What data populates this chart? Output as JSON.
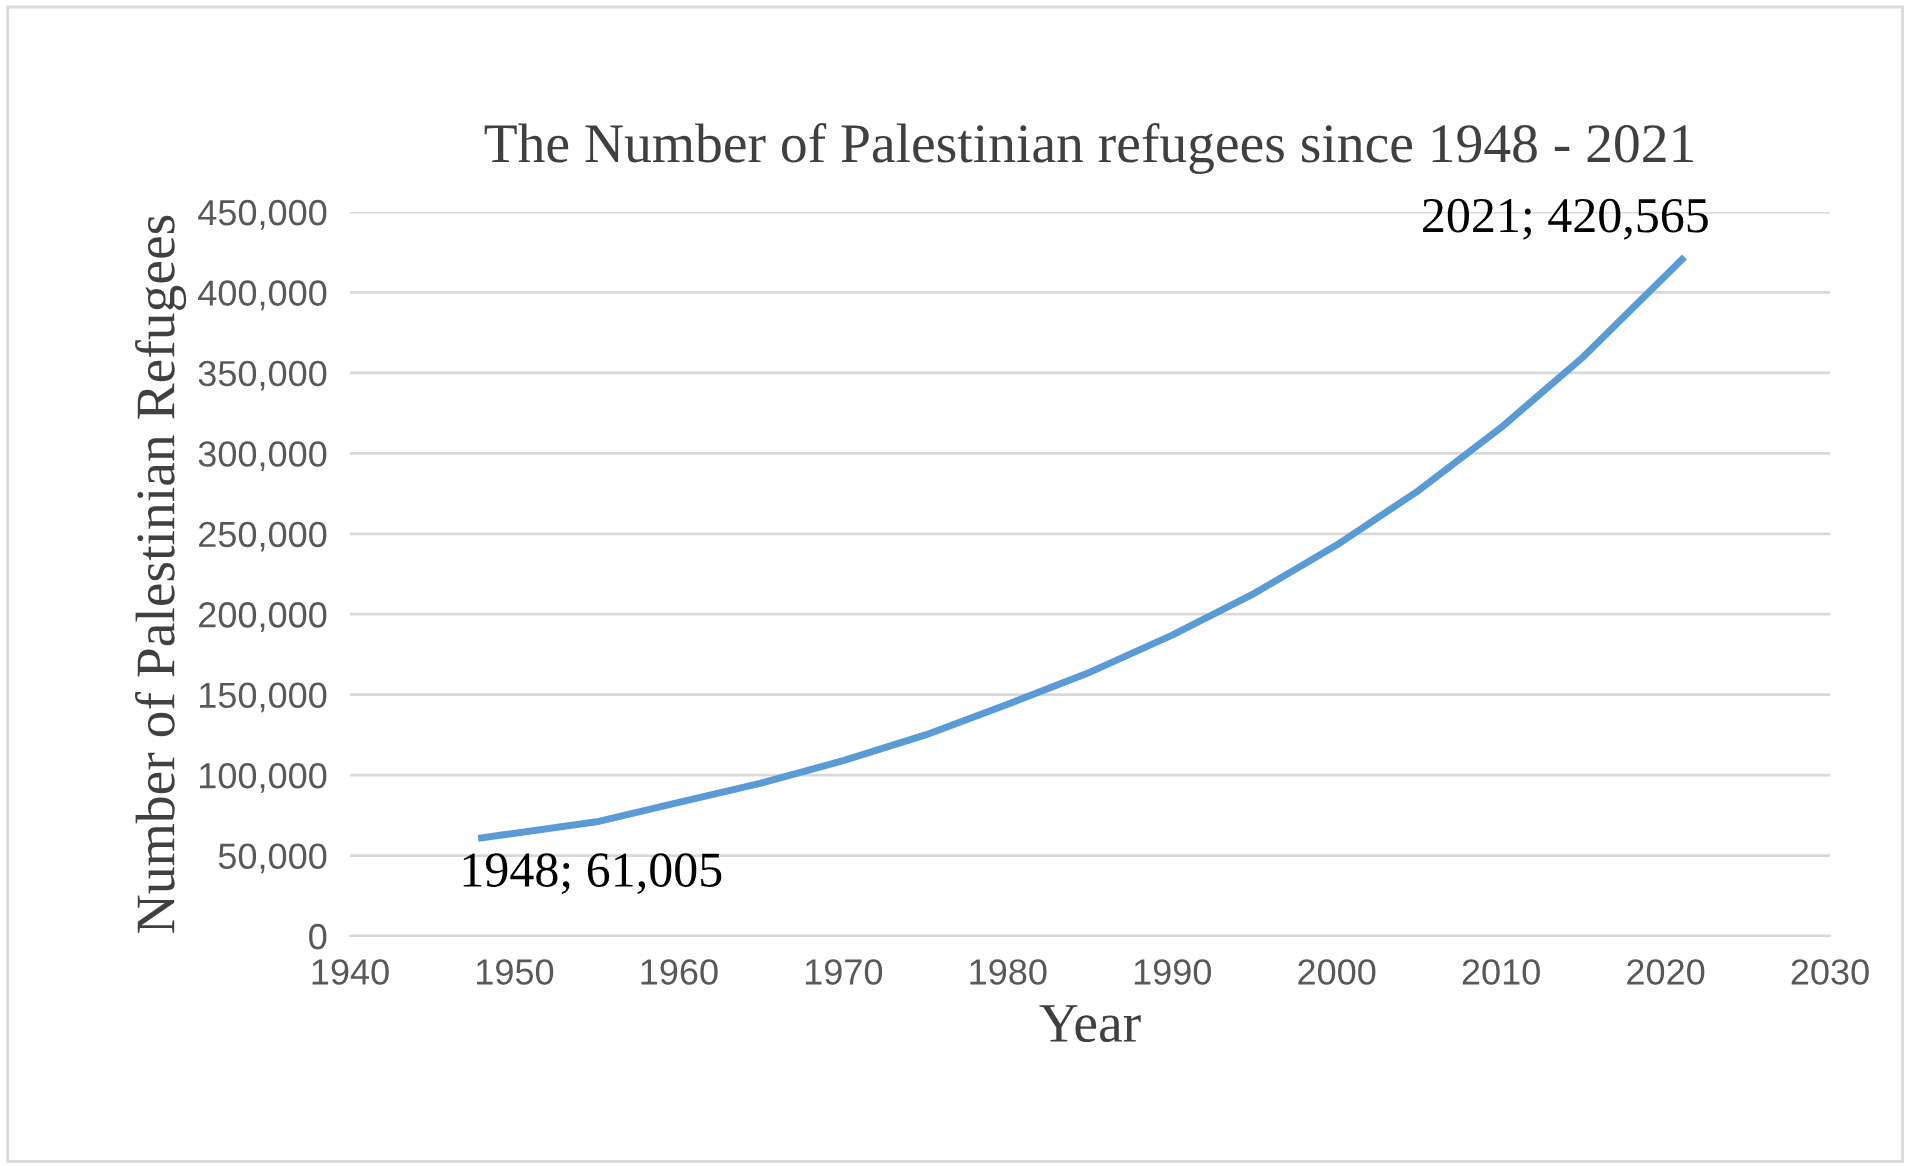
{
  "chart_data": {
    "type": "line",
    "title": "The Number of Palestinian refugees since 1948 - 2021",
    "xlabel": "Year",
    "ylabel": "Number of Palestinian Refugees",
    "series": [
      {
        "color": "#5b9bd5",
        "x": [
          1948,
          1955,
          1960,
          1965,
          1970,
          1975,
          1980,
          1985,
          1990,
          1995,
          2000,
          2005,
          2010,
          2015,
          2021
        ],
        "values": [
          61005,
          71000,
          83000,
          95000,
          109000,
          125000,
          144000,
          164000,
          187000,
          213000,
          243000,
          277000,
          316000,
          360000,
          420565
        ]
      }
    ],
    "xlim": [
      1940,
      2030
    ],
    "xticks": [
      1940,
      1950,
      1960,
      1970,
      1980,
      1990,
      2000,
      2010,
      2020,
      2030
    ],
    "ylim": [
      0,
      450000
    ],
    "yticks": [
      {
        "value": 0,
        "label": "0"
      },
      {
        "value": 50000,
        "label": "50,000"
      },
      {
        "value": 100000,
        "label": "100,000"
      },
      {
        "value": 150000,
        "label": "150,000"
      },
      {
        "value": 200000,
        "label": "200,000"
      },
      {
        "value": 250000,
        "label": "250,000"
      },
      {
        "value": 300000,
        "label": "300,000"
      },
      {
        "value": 350000,
        "label": "350,000"
      },
      {
        "value": 400000,
        "label": "400,000"
      },
      {
        "value": 450000,
        "label": "450,000"
      }
    ],
    "grid": "y",
    "legend": false,
    "marker": "none",
    "line_style": "solid",
    "annotations": [
      {
        "text": "1948; 61,005",
        "x": 1948,
        "y": 61005
      },
      {
        "text": "2021; 420,565",
        "x": 2021,
        "y": 420565
      }
    ]
  }
}
